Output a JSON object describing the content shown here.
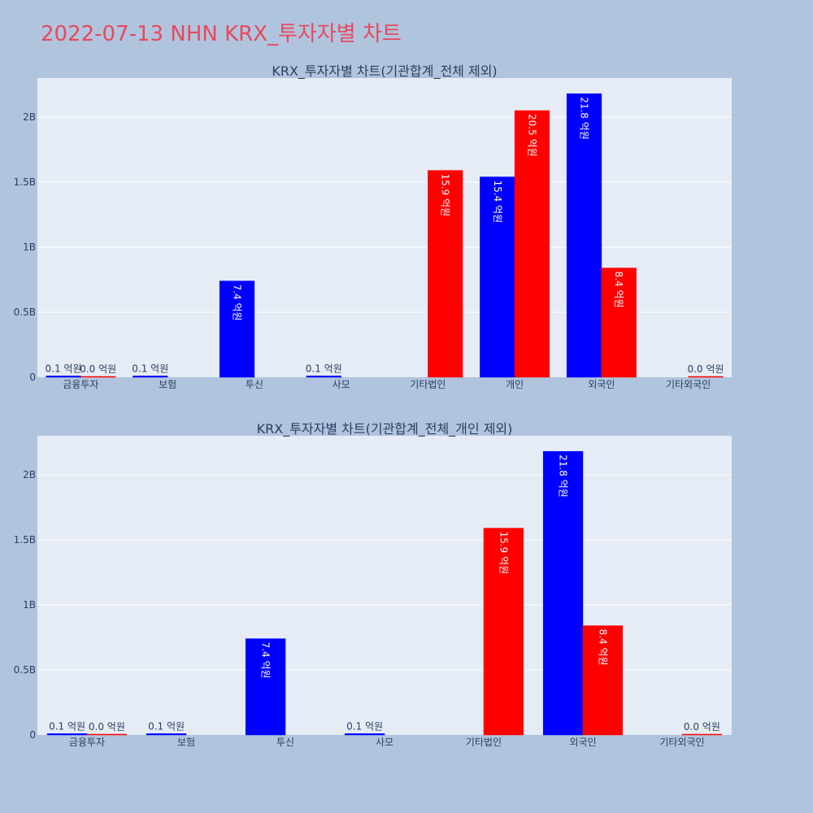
{
  "page": {
    "title": "2022-07-13 NHN KRX_투자자별 차트",
    "title_color": "#e8495d",
    "background": "#b0c4de",
    "plot_background": "#e5ecf6",
    "grid_color": "#ffffff"
  },
  "chart_data": [
    {
      "type": "bar",
      "title": "KRX_투자자별 차트(기관합계_전체 제외)",
      "categories": [
        "금융투자",
        "보험",
        "투신",
        "사모",
        "기타법인",
        "개인",
        "외국인",
        "기타외국인"
      ],
      "ylim": [
        0,
        2.3
      ],
      "y_ticks": [
        0,
        0.5,
        1,
        1.5,
        2
      ],
      "y_tick_labels": [
        "0",
        "0.5B",
        "1B",
        "1.5B",
        "2B"
      ],
      "grid": true,
      "series": [
        {
          "color": "#0000ff",
          "values": [
            0.01,
            0.01,
            0.74,
            0.01,
            null,
            1.54,
            2.18,
            null
          ],
          "labels": [
            "0.1 억원",
            "0.1 억원",
            "7.4 억원",
            "0.1 억원",
            "",
            "15.4 억원",
            "21.8 억원",
            ""
          ]
        },
        {
          "color": "#ff0000",
          "values": [
            0.0,
            null,
            null,
            null,
            1.59,
            2.05,
            0.84,
            0.0
          ],
          "labels": [
            "0.0 억원",
            "",
            "",
            "",
            "15.9 억원",
            "20.5 억원",
            "8.4 억원",
            "0.0 억원"
          ]
        }
      ]
    },
    {
      "type": "bar",
      "title": "KRX_투자자별 차트(기관합계_전체_개인 제외)",
      "categories": [
        "금융투자",
        "보험",
        "투신",
        "사모",
        "기타법인",
        "외국인",
        "기타외국인"
      ],
      "ylim": [
        0,
        2.3
      ],
      "y_ticks": [
        0,
        0.5,
        1,
        1.5,
        2
      ],
      "y_tick_labels": [
        "0",
        "0.5B",
        "1B",
        "1.5B",
        "2B"
      ],
      "grid": true,
      "series": [
        {
          "color": "#0000ff",
          "values": [
            0.01,
            0.01,
            0.74,
            0.01,
            null,
            2.18,
            null
          ],
          "labels": [
            "0.1 억원",
            "0.1 억원",
            "7.4 억원",
            "0.1 억원",
            "",
            "21.8 억원",
            ""
          ]
        },
        {
          "color": "#ff0000",
          "values": [
            0.0,
            null,
            null,
            null,
            1.59,
            0.84,
            0.0
          ],
          "labels": [
            "0.0 억원",
            "",
            "",
            "",
            "15.9 억원",
            "8.4 억원",
            "0.0 억원"
          ]
        }
      ]
    }
  ]
}
